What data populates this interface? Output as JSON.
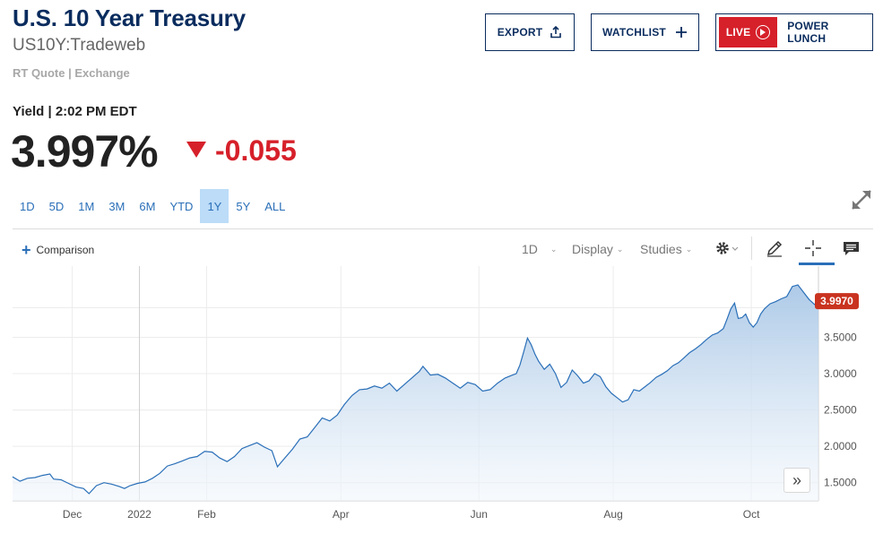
{
  "header": {
    "title": "U.S. 10 Year Treasury",
    "symbol": "US10Y:Tradeweb",
    "quote_source": "RT Quote | Exchange"
  },
  "actions": {
    "export_label": "EXPORT",
    "watchlist_label": "WATCHLIST",
    "live_badge": "LIVE",
    "live_label": "POWER LUNCH"
  },
  "quote": {
    "yield_label": "Yield | 2:02 PM EDT",
    "price": "3.997%",
    "change": "-0.055",
    "change_color": "#d6202a"
  },
  "ranges": [
    "1D",
    "5D",
    "1M",
    "3M",
    "6M",
    "YTD",
    "1Y",
    "5Y",
    "ALL"
  ],
  "active_range": "1Y",
  "toolbar": {
    "comparison_label": "Comparison",
    "interval_label": "1D",
    "display_label": "Display",
    "studies_label": "Studies",
    "icons": [
      "gear-icon",
      "pencil-icon",
      "crosshair-icon",
      "comment-icon"
    ]
  },
  "chart_data": {
    "type": "area",
    "series": [
      {
        "name": "US10Y",
        "color": "#2a6fb8",
        "points": [
          [
            0,
            1.58
          ],
          [
            4,
            1.52
          ],
          [
            8,
            1.56
          ],
          [
            12,
            1.57
          ],
          [
            16,
            1.6
          ],
          [
            20,
            1.62
          ],
          [
            22,
            1.55
          ],
          [
            26,
            1.54
          ],
          [
            30,
            1.49
          ],
          [
            34,
            1.44
          ],
          [
            38,
            1.42
          ],
          [
            41,
            1.35
          ],
          [
            45,
            1.46
          ],
          [
            49,
            1.5
          ],
          [
            53,
            1.48
          ],
          [
            57,
            1.45
          ],
          [
            60,
            1.42
          ],
          [
            63,
            1.46
          ],
          [
            67,
            1.49
          ],
          [
            71,
            1.51
          ],
          [
            75,
            1.56
          ],
          [
            79,
            1.63
          ],
          [
            83,
            1.73
          ],
          [
            87,
            1.76
          ],
          [
            91,
            1.8
          ],
          [
            95,
            1.84
          ],
          [
            99,
            1.86
          ],
          [
            103,
            1.93
          ],
          [
            107,
            1.92
          ],
          [
            111,
            1.84
          ],
          [
            115,
            1.79
          ],
          [
            119,
            1.86
          ],
          [
            123,
            1.97
          ],
          [
            127,
            2.01
          ],
          [
            131,
            2.05
          ],
          [
            135,
            1.99
          ],
          [
            139,
            1.94
          ],
          [
            142,
            1.72
          ],
          [
            146,
            1.84
          ],
          [
            150,
            1.96
          ],
          [
            154,
            2.1
          ],
          [
            158,
            2.13
          ],
          [
            162,
            2.26
          ],
          [
            166,
            2.39
          ],
          [
            170,
            2.35
          ],
          [
            174,
            2.43
          ],
          [
            178,
            2.58
          ],
          [
            182,
            2.7
          ],
          [
            186,
            2.78
          ],
          [
            190,
            2.79
          ],
          [
            194,
            2.83
          ],
          [
            198,
            2.8
          ],
          [
            202,
            2.87
          ],
          [
            206,
            2.76
          ],
          [
            210,
            2.85
          ],
          [
            214,
            2.94
          ],
          [
            218,
            3.03
          ],
          [
            220,
            3.1
          ],
          [
            224,
            2.98
          ],
          [
            228,
            2.99
          ],
          [
            232,
            2.94
          ],
          [
            236,
            2.87
          ],
          [
            240,
            2.8
          ],
          [
            244,
            2.88
          ],
          [
            248,
            2.85
          ],
          [
            252,
            2.76
          ],
          [
            256,
            2.78
          ],
          [
            260,
            2.87
          ],
          [
            264,
            2.94
          ],
          [
            268,
            2.98
          ],
          [
            270,
            3.0
          ],
          [
            272,
            3.12
          ],
          [
            274,
            3.3
          ],
          [
            276,
            3.49
          ],
          [
            278,
            3.4
          ],
          [
            280,
            3.27
          ],
          [
            282,
            3.17
          ],
          [
            285,
            3.06
          ],
          [
            288,
            3.13
          ],
          [
            291,
            3.0
          ],
          [
            294,
            2.81
          ],
          [
            297,
            2.88
          ],
          [
            300,
            3.05
          ],
          [
            303,
            2.97
          ],
          [
            306,
            2.87
          ],
          [
            309,
            2.9
          ],
          [
            312,
            3.0
          ],
          [
            315,
            2.96
          ],
          [
            318,
            2.82
          ],
          [
            321,
            2.73
          ],
          [
            324,
            2.67
          ],
          [
            327,
            2.61
          ],
          [
            330,
            2.64
          ],
          [
            333,
            2.78
          ],
          [
            336,
            2.76
          ],
          [
            339,
            2.82
          ],
          [
            342,
            2.88
          ],
          [
            345,
            2.95
          ],
          [
            348,
            2.99
          ],
          [
            351,
            3.04
          ],
          [
            354,
            3.11
          ],
          [
            357,
            3.15
          ],
          [
            360,
            3.22
          ],
          [
            363,
            3.29
          ],
          [
            366,
            3.34
          ],
          [
            369,
            3.4
          ],
          [
            372,
            3.47
          ],
          [
            375,
            3.53
          ],
          [
            378,
            3.56
          ],
          [
            381,
            3.62
          ],
          [
            383,
            3.75
          ],
          [
            385,
            3.89
          ],
          [
            387,
            3.97
          ],
          [
            389,
            3.76
          ],
          [
            391,
            3.77
          ],
          [
            393,
            3.82
          ],
          [
            395,
            3.7
          ],
          [
            397,
            3.64
          ],
          [
            399,
            3.7
          ],
          [
            401,
            3.82
          ],
          [
            403,
            3.89
          ],
          [
            406,
            3.96
          ],
          [
            409,
            3.99
          ],
          [
            412,
            4.03
          ],
          [
            415,
            4.06
          ],
          [
            418,
            4.2
          ],
          [
            421,
            4.22
          ],
          [
            424,
            4.12
          ],
          [
            427,
            4.02
          ],
          [
            430,
            3.95
          ],
          [
            432,
            3.997
          ]
        ]
      }
    ],
    "x_ticks": [
      {
        "x": 32,
        "label": "Dec"
      },
      {
        "x": 68,
        "label": "2022"
      },
      {
        "x": 104,
        "label": "Feb"
      },
      {
        "x": 176,
        "label": "Apr"
      },
      {
        "x": 250,
        "label": "Jun"
      },
      {
        "x": 322,
        "label": "Aug"
      },
      {
        "x": 396,
        "label": "Oct"
      }
    ],
    "y_ticks": [
      {
        "y": 1.5,
        "label": "1.5000"
      },
      {
        "y": 2.0,
        "label": "2.0000"
      },
      {
        "y": 2.5,
        "label": "2.5000"
      },
      {
        "y": 3.0,
        "label": "3.0000"
      },
      {
        "y": 3.5,
        "label": "3.5000"
      }
    ],
    "last_value_label": "3.9970",
    "last_value_color": "#c9331f",
    "xlim": [
      0,
      432
    ],
    "ylim": [
      1.25,
      4.43
    ],
    "grid": true
  }
}
